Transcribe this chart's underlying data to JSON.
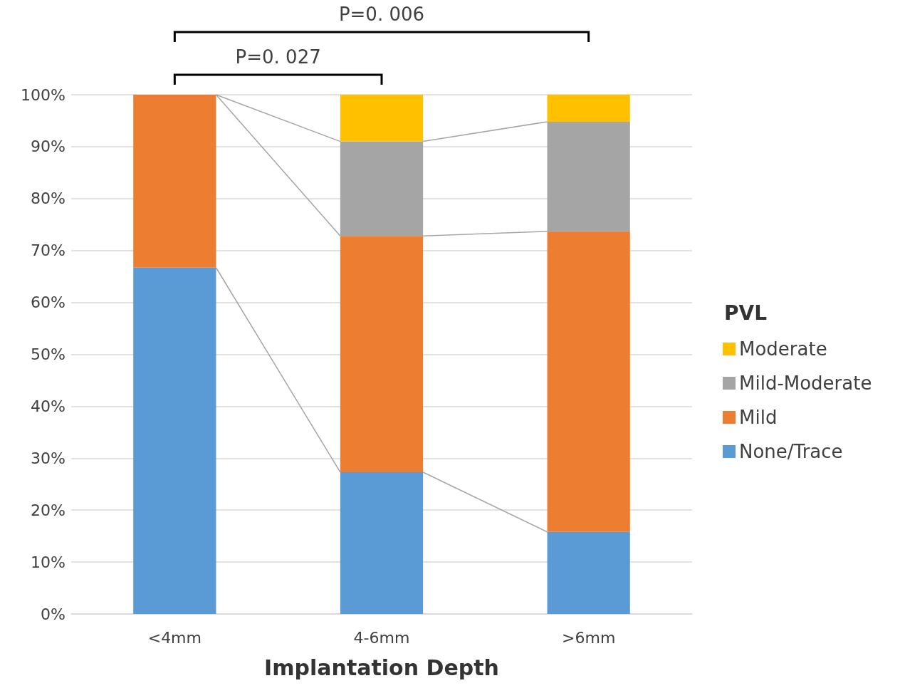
{
  "chart_data": {
    "type": "bar",
    "stacked": true,
    "xlabel": "Implantation Depth",
    "legend_title": "PVL",
    "legend": "right",
    "categories": [
      "<4mm",
      "4-6mm",
      ">6mm"
    ],
    "series": [
      {
        "name": "None/Trace",
        "color": "#5b9bd5",
        "values": [
          66.7,
          27.3,
          15.8
        ]
      },
      {
        "name": "Mild",
        "color": "#ed7d31",
        "values": [
          33.3,
          45.5,
          57.9
        ]
      },
      {
        "name": "Mild-Moderate",
        "color": "#a5a5a5",
        "values": [
          0,
          18.2,
          21.1
        ]
      },
      {
        "name": "Moderate",
        "color": "#ffc000",
        "values": [
          0,
          9.1,
          5.2
        ]
      }
    ],
    "ylim": [
      0,
      100
    ],
    "yticks": [
      {
        "value": 0,
        "label": "0%"
      },
      {
        "value": 10,
        "label": "10%"
      },
      {
        "value": 20,
        "label": "20%"
      },
      {
        "value": 30,
        "label": "30%"
      },
      {
        "value": 40,
        "label": "40%"
      },
      {
        "value": 50,
        "label": "50%"
      },
      {
        "value": 60,
        "label": "60%"
      },
      {
        "value": 70,
        "label": "70%"
      },
      {
        "value": 80,
        "label": "80%"
      },
      {
        "value": 90,
        "label": "90%"
      },
      {
        "value": 100,
        "label": "100%"
      }
    ],
    "grid": "y",
    "annotations": [
      "P=0. 027",
      "P=0. 006"
    ]
  }
}
